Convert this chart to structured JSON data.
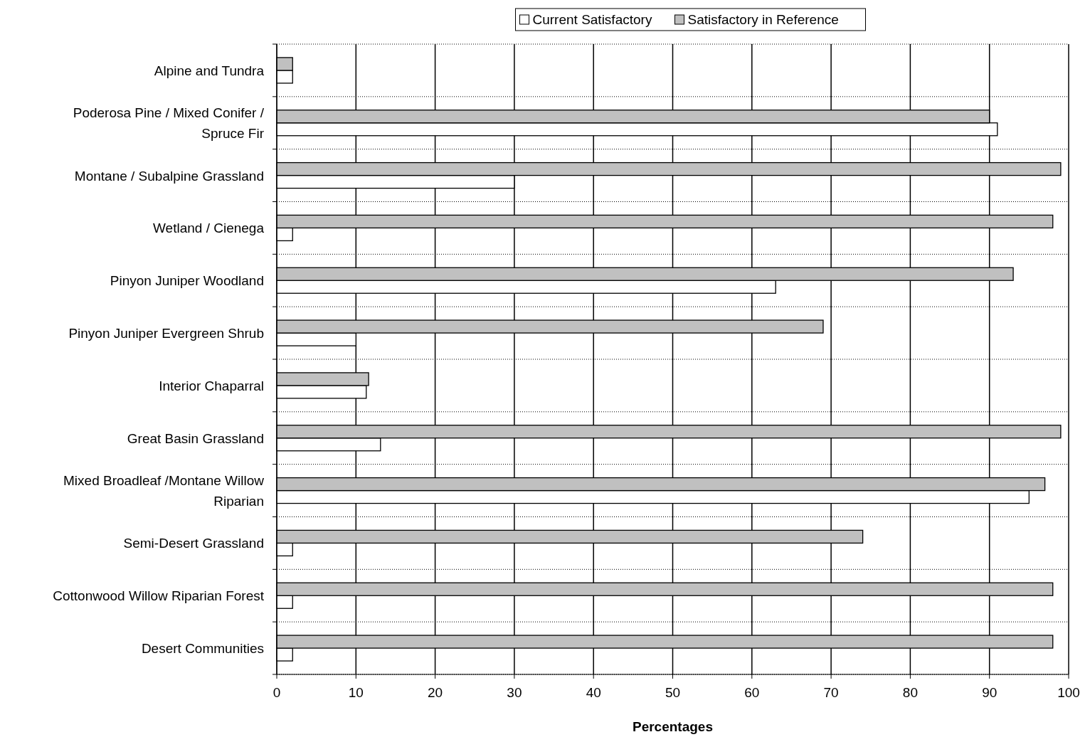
{
  "chart_data": {
    "type": "bar",
    "orientation": "horizontal",
    "xlabel": "Percentages",
    "categories": [
      "Alpine and Tundra",
      "Poderosa Pine / Mixed Conifer / Spruce Fir",
      "Montane / Subalpine Grassland",
      "Wetland / Cienega",
      "Pinyon Juniper Woodland",
      "Pinyon Juniper Evergreen Shrub",
      "Interior Chaparral",
      "Great Basin Grassland",
      "Mixed Broadleaf /Montane Willow Riparian",
      "Semi-Desert Grassland",
      "Cottonwood Willow Riparian Forest",
      "Desert Communities"
    ],
    "series": [
      {
        "name": "Current Satisfactory",
        "color": "#ffffff",
        "values": [
          2,
          91,
          30,
          2,
          63,
          10,
          11.3,
          13.1,
          95,
          2,
          2,
          2
        ]
      },
      {
        "name": "Satisfactory in Reference",
        "color": "#c0c0c0",
        "values": [
          2,
          90,
          99,
          98,
          93,
          69,
          11.6,
          99,
          97,
          74,
          98,
          98
        ]
      }
    ],
    "xlim": [
      0,
      100
    ],
    "xticks": [
      0,
      10,
      20,
      30,
      40,
      50,
      60,
      70,
      80,
      90,
      100
    ],
    "grid": true,
    "legend": "top"
  }
}
